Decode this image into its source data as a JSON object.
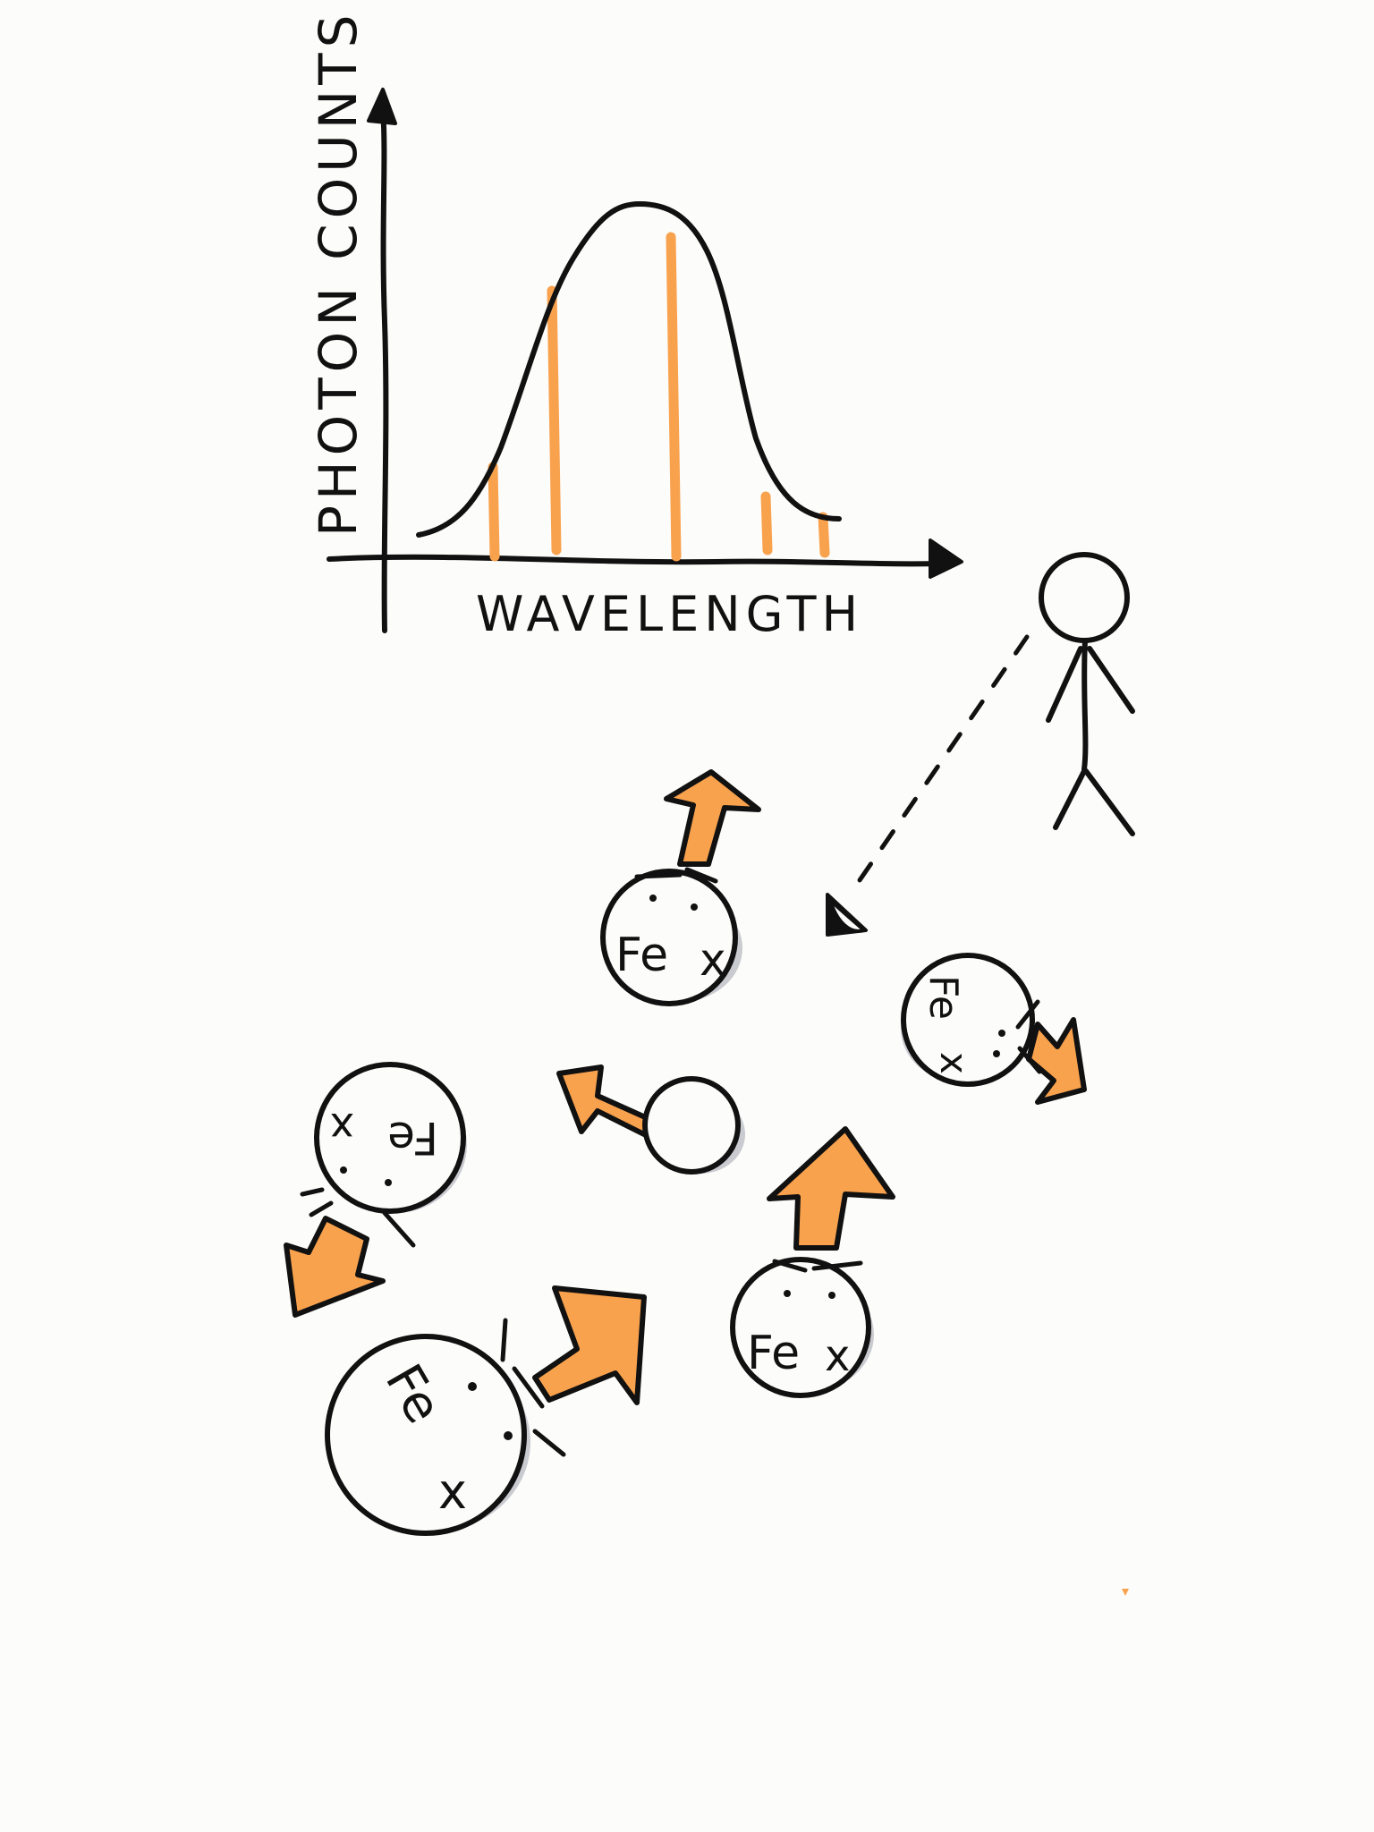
{
  "colors": {
    "ink": "#111111",
    "accent": "#f9a24e",
    "shadow": "#c9cbd0",
    "background": "#fcfcfa"
  },
  "chart": {
    "ylabel": "PHOTON COUNTS",
    "xlabel": "WAVELENGTH"
  },
  "scene": {
    "ion_symbol": "Fe",
    "ion_charge_mark": "x",
    "observer_icon": "stick-figure-icon",
    "arrow_icon": "motion-arrow-icon",
    "ions": [
      {
        "label": "Fe",
        "mark": "x"
      },
      {
        "label": "Fe",
        "mark": "x"
      },
      {
        "label": "Fe",
        "mark": "x"
      },
      {
        "label": "Fe",
        "mark": "x"
      },
      {
        "label": "Fe",
        "mark": "x"
      },
      {
        "label": "",
        "mark": ""
      }
    ]
  }
}
